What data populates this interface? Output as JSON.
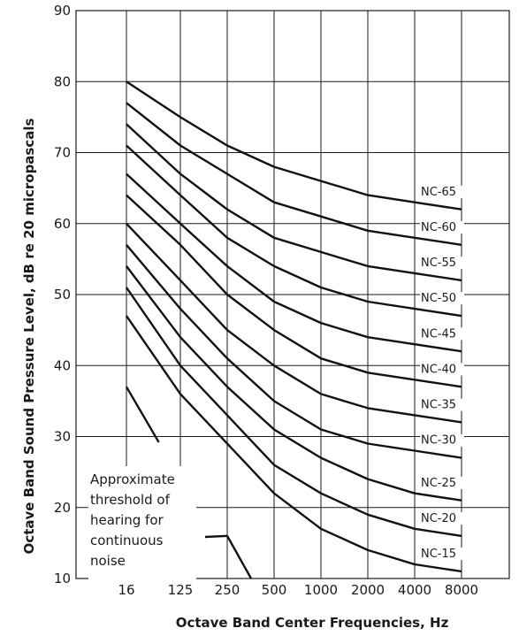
{
  "chart_data": {
    "type": "line",
    "xlabel": "Octave Band Center Frequencies, Hz",
    "ylabel": "Octave Band Sound Pressure Level, dB re 20 micropascals",
    "categories": [
      "16",
      "125",
      "250",
      "500",
      "1000",
      "2000",
      "4000",
      "8000"
    ],
    "ylim": [
      10,
      90
    ],
    "yticks": [
      "90",
      "80",
      "70",
      "60",
      "50",
      "40",
      "30",
      "20",
      "10"
    ],
    "grid": true,
    "series": [
      {
        "name": "NC-65",
        "values": [
          80,
          75,
          71,
          68,
          66,
          64,
          63,
          62
        ]
      },
      {
        "name": "NC-60",
        "values": [
          77,
          71,
          67,
          63,
          61,
          59,
          58,
          57
        ]
      },
      {
        "name": "NC-55",
        "values": [
          74,
          67,
          62,
          58,
          56,
          54,
          53,
          52
        ]
      },
      {
        "name": "NC-50",
        "values": [
          71,
          64,
          58,
          54,
          51,
          49,
          48,
          47
        ]
      },
      {
        "name": "NC-45",
        "values": [
          67,
          60,
          54,
          49,
          46,
          44,
          43,
          42
        ]
      },
      {
        "name": "NC-40",
        "values": [
          64,
          57,
          50,
          45,
          41,
          39,
          38,
          37
        ]
      },
      {
        "name": "NC-35",
        "values": [
          60,
          52,
          45,
          40,
          36,
          34,
          33,
          32
        ]
      },
      {
        "name": "NC-30",
        "values": [
          57,
          48,
          41,
          35,
          31,
          29,
          28,
          27
        ]
      },
      {
        "name": "NC-25",
        "values": [
          54,
          44,
          37,
          31,
          27,
          24,
          22,
          21
        ]
      },
      {
        "name": "NC-20",
        "values": [
          51,
          40,
          33,
          26,
          22,
          19,
          17,
          16
        ]
      },
      {
        "name": "NC-15",
        "values": [
          47,
          36,
          29,
          22,
          17,
          14,
          12,
          11
        ]
      }
    ],
    "threshold": {
      "label_lines": [
        "Approximate",
        "threshold of",
        "hearing for",
        "continuous",
        "noise"
      ],
      "values": [
        37,
        24,
        16,
        10
      ]
    }
  }
}
